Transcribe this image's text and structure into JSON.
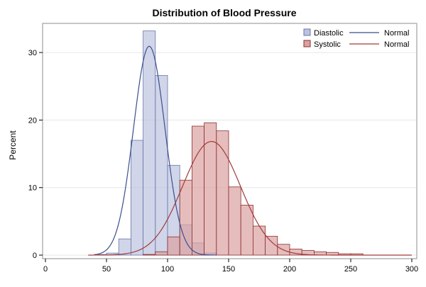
{
  "chart_data": {
    "type": "bar",
    "title": "Distribution of Blood Pressure",
    "xlabel": "",
    "ylabel": "Percent",
    "xlim": [
      0,
      300
    ],
    "ylim": [
      0,
      34
    ],
    "xticks": [
      "0",
      "50",
      "100",
      "150",
      "200",
      "250",
      "300"
    ],
    "yticks": [
      "0",
      "10",
      "20",
      "30"
    ],
    "grid": true,
    "legend_position": "top-right",
    "series": [
      {
        "name": "Diastolic",
        "kind": "histogram",
        "color": "#bcc3df",
        "edge_color": "#6a76a8",
        "bin_width": 10,
        "bin_starts": [
          40,
          50,
          60,
          70,
          80,
          90,
          100,
          110,
          120,
          130
        ],
        "values": [
          0.1,
          0.3,
          2.4,
          17.0,
          33.2,
          26.6,
          13.3,
          4.5,
          1.8,
          0.3
        ]
      },
      {
        "name": "Systolic",
        "kind": "histogram",
        "color": "#dba1a1",
        "edge_color": "#8c2f2f",
        "bin_width": 10,
        "bin_starts": [
          80,
          90,
          100,
          110,
          120,
          130,
          140,
          150,
          160,
          170,
          180,
          190,
          200,
          210,
          220,
          230,
          240,
          250
        ],
        "values": [
          0.1,
          0.5,
          2.7,
          11.1,
          19.1,
          19.6,
          18.4,
          10.1,
          7.4,
          4.3,
          2.8,
          1.6,
          0.9,
          0.7,
          0.5,
          0.4,
          0.2,
          0.2
        ]
      }
    ],
    "curves": [
      {
        "name": "Normal",
        "of": "Diastolic",
        "color": "#3b4f8e",
        "mean": 85,
        "sd": 12.9,
        "scale": 1000,
        "x_range": [
          40,
          140
        ]
      },
      {
        "name": "Normal",
        "of": "Systolic",
        "color": "#a33a3a",
        "mean": 136,
        "sd": 23.7,
        "scale": 1000,
        "x_range": [
          35,
          300
        ]
      }
    ]
  }
}
